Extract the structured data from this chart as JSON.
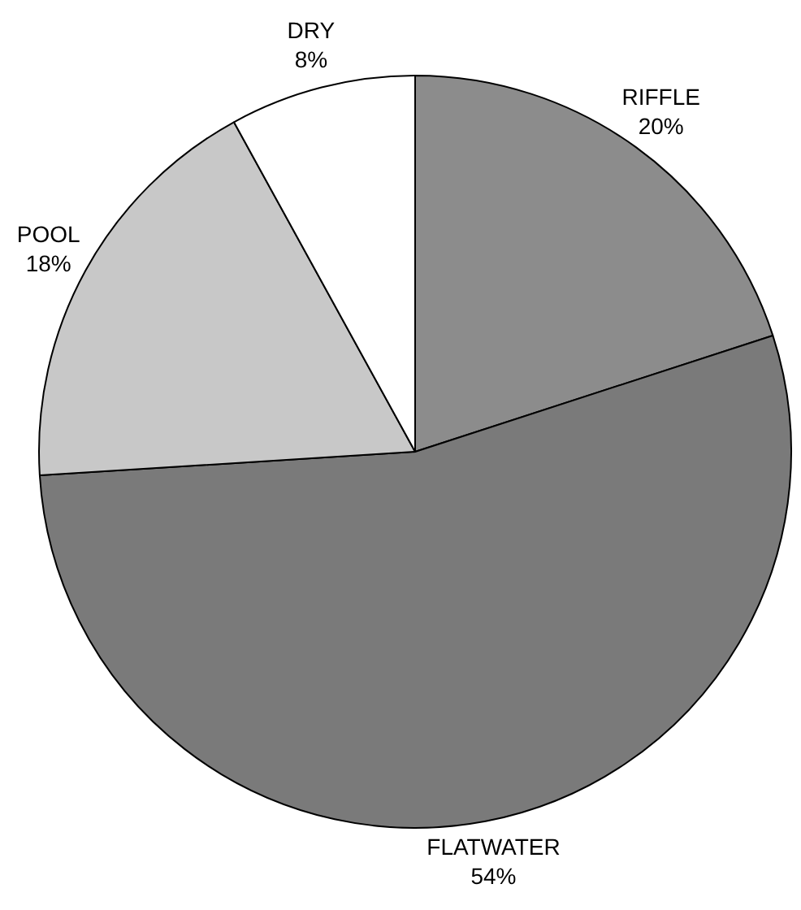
{
  "chart_data": {
    "type": "pie",
    "categories": [
      "RIFFLE",
      "FLATWATER",
      "POOL",
      "DRY"
    ],
    "values": [
      20,
      54,
      18,
      8
    ],
    "value_labels": [
      "20%",
      "54%",
      "18%",
      "8%"
    ],
    "colors": [
      "#8c8c8c",
      "#7a7a7a",
      "#c8c8c8",
      "#ffffff"
    ],
    "legend": false
  }
}
